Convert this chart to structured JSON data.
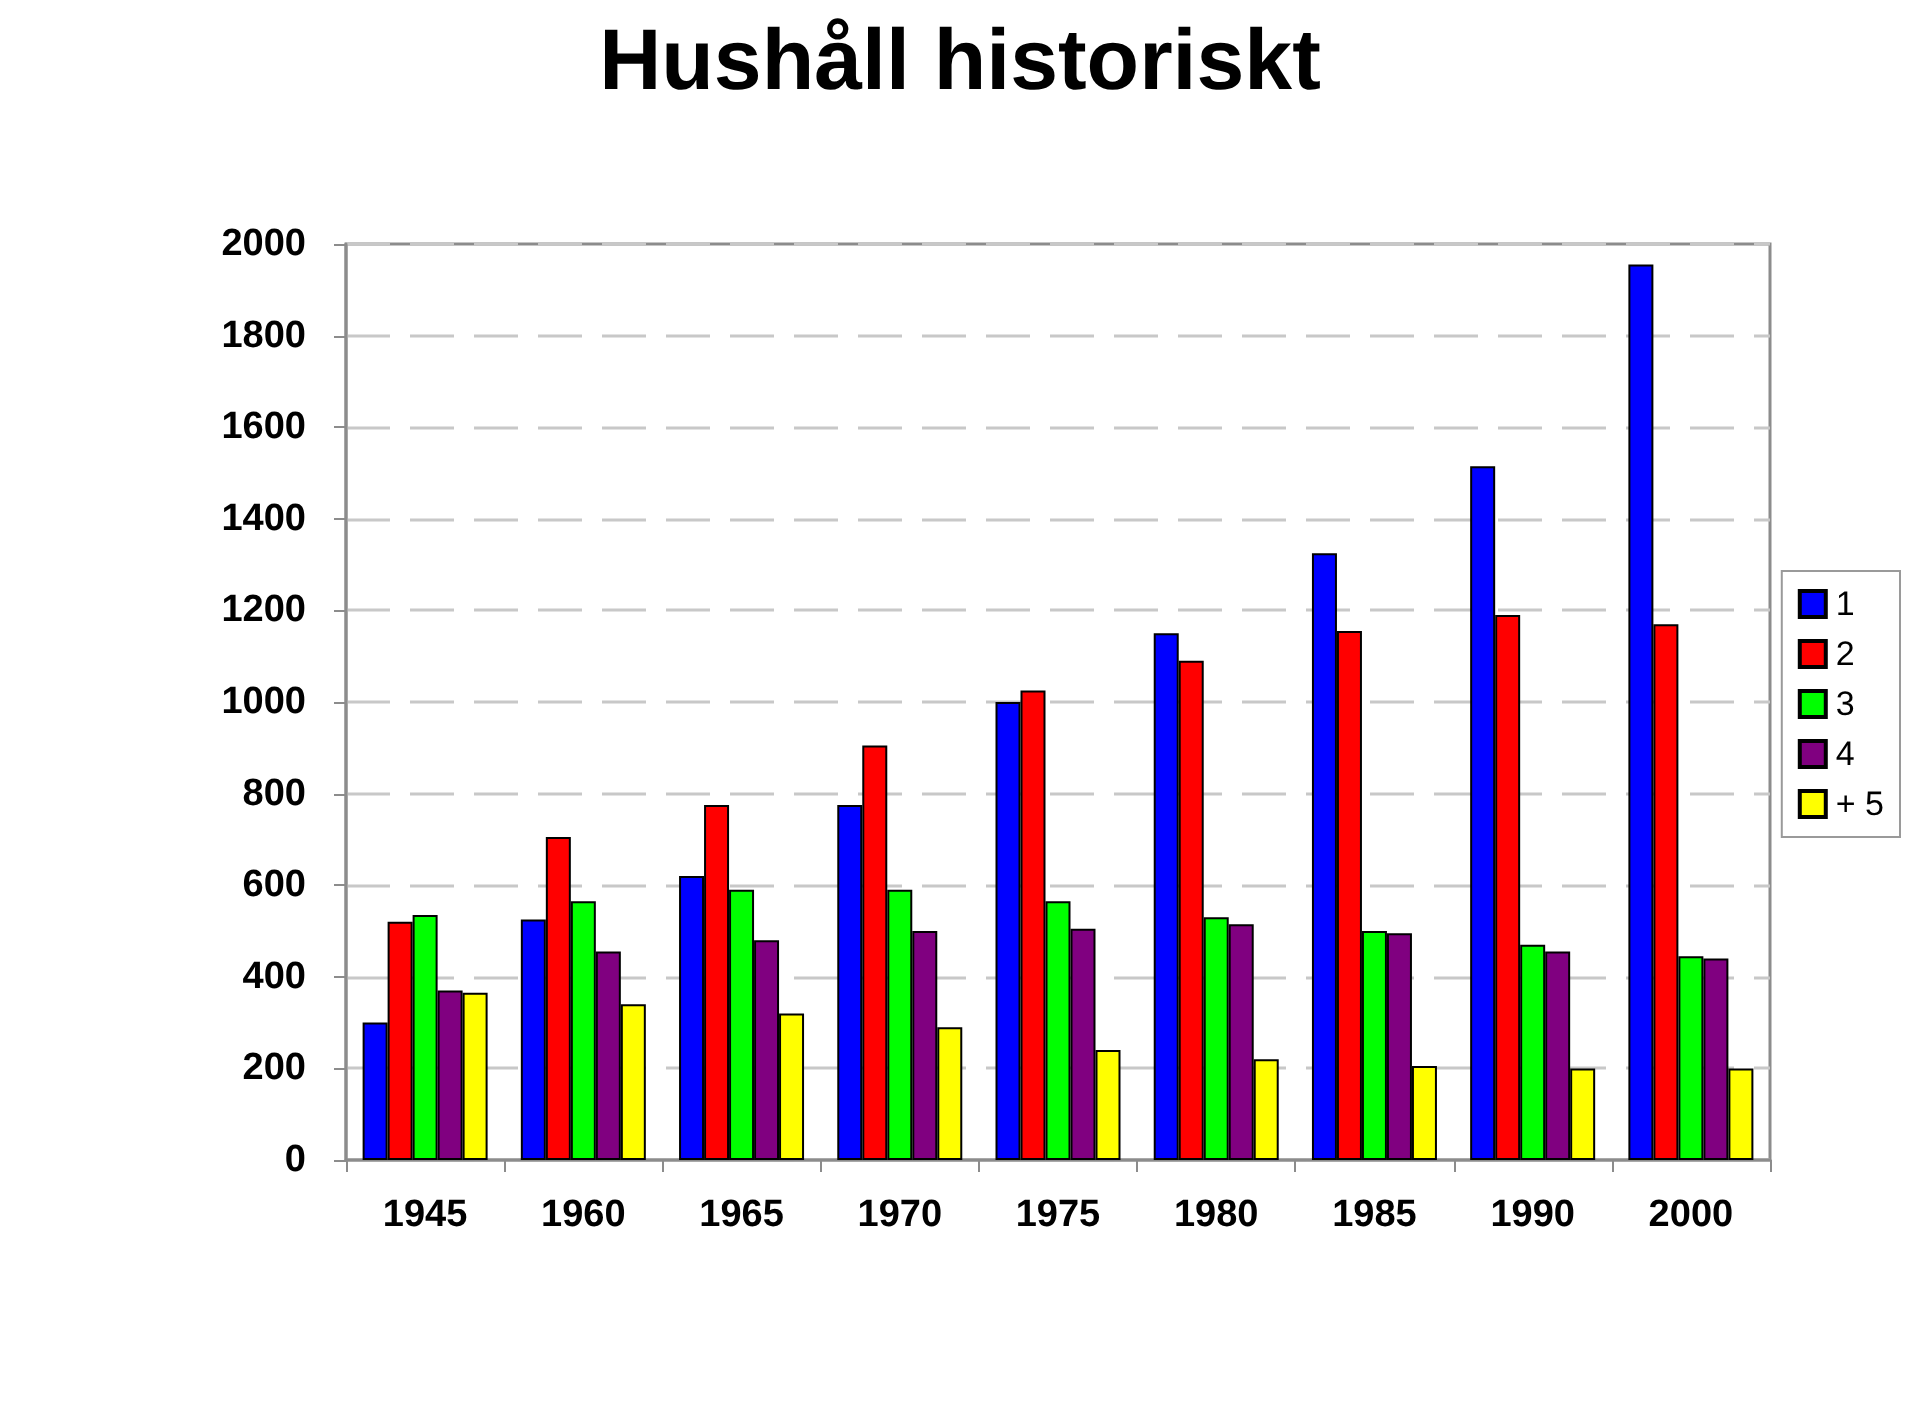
{
  "chart_data": {
    "type": "bar",
    "title": "Hushåll historiskt",
    "categories": [
      "1945",
      "1960",
      "1965",
      "1970",
      "1975",
      "1980",
      "1985",
      "1990",
      "2000"
    ],
    "series": [
      {
        "name": "1",
        "color": "#0000ff",
        "values": [
          300,
          525,
          620,
          775,
          1000,
          1150,
          1325,
          1515,
          1955
        ]
      },
      {
        "name": "2",
        "color": "#ff0000",
        "values": [
          520,
          705,
          775,
          905,
          1025,
          1090,
          1155,
          1190,
          1170
        ]
      },
      {
        "name": "3",
        "color": "#00ff00",
        "values": [
          535,
          565,
          590,
          590,
          565,
          530,
          500,
          470,
          445
        ]
      },
      {
        "name": "4",
        "color": "#800080",
        "values": [
          370,
          455,
          480,
          500,
          505,
          515,
          495,
          455,
          440
        ]
      },
      {
        "name": "+ 5",
        "color": "#ffff00",
        "values": [
          365,
          340,
          320,
          290,
          240,
          220,
          205,
          200,
          200
        ]
      }
    ],
    "ylim": [
      0,
      2000
    ],
    "yticks": [
      0,
      200,
      400,
      600,
      800,
      1000,
      1200,
      1400,
      1600,
      1800,
      2000
    ],
    "grid": "y",
    "legend": "right"
  }
}
